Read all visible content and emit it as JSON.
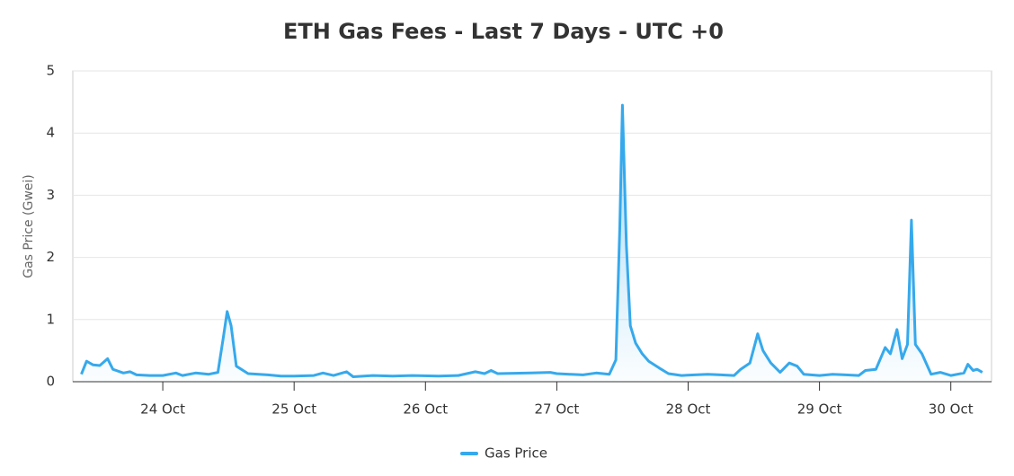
{
  "chart_data": {
    "type": "line",
    "title": "ETH Gas Fees - Last 7 Days - UTC +0",
    "y_label": "Gas Price (Gwei)",
    "x": [
      23.38,
      23.42,
      23.47,
      23.52,
      23.58,
      23.62,
      23.7,
      23.75,
      23.8,
      23.9,
      24.0,
      24.1,
      24.15,
      24.25,
      24.35,
      24.42,
      24.46,
      24.49,
      24.52,
      24.56,
      24.65,
      24.8,
      24.9,
      25.0,
      25.15,
      25.22,
      25.3,
      25.4,
      25.45,
      25.6,
      25.75,
      25.9,
      26.1,
      26.25,
      26.38,
      26.45,
      26.5,
      26.55,
      26.8,
      26.95,
      27.0,
      27.1,
      27.2,
      27.3,
      27.4,
      27.45,
      27.48,
      27.5,
      27.53,
      27.56,
      27.6,
      27.65,
      27.7,
      27.78,
      27.85,
      27.95,
      28.05,
      28.15,
      28.25,
      28.35,
      28.4,
      28.47,
      28.53,
      28.57,
      28.63,
      28.7,
      28.77,
      28.83,
      28.88,
      29.0,
      29.1,
      29.2,
      29.3,
      29.35,
      29.43,
      29.5,
      29.54,
      29.59,
      29.63,
      29.67,
      29.7,
      29.73,
      29.78,
      29.85,
      29.92,
      30.0,
      30.1,
      30.13,
      30.17,
      30.2,
      30.24
    ],
    "series": [
      {
        "name": "Gas Price",
        "color": "#36a9ec",
        "values": [
          0.12,
          0.33,
          0.27,
          0.26,
          0.37,
          0.2,
          0.14,
          0.16,
          0.11,
          0.1,
          0.1,
          0.14,
          0.1,
          0.14,
          0.12,
          0.15,
          0.7,
          1.13,
          0.9,
          0.25,
          0.13,
          0.11,
          0.09,
          0.09,
          0.1,
          0.14,
          0.1,
          0.16,
          0.08,
          0.1,
          0.09,
          0.1,
          0.09,
          0.1,
          0.16,
          0.13,
          0.18,
          0.13,
          0.14,
          0.15,
          0.13,
          0.12,
          0.11,
          0.14,
          0.12,
          0.35,
          2.5,
          4.45,
          2.2,
          0.9,
          0.62,
          0.45,
          0.33,
          0.22,
          0.13,
          0.1,
          0.11,
          0.12,
          0.11,
          0.1,
          0.2,
          0.3,
          0.77,
          0.5,
          0.3,
          0.15,
          0.3,
          0.25,
          0.12,
          0.1,
          0.12,
          0.11,
          0.1,
          0.18,
          0.2,
          0.55,
          0.45,
          0.84,
          0.37,
          0.6,
          2.6,
          0.6,
          0.45,
          0.12,
          0.15,
          0.1,
          0.14,
          0.28,
          0.18,
          0.2,
          0.15
        ]
      }
    ],
    "xlim": [
      23.315,
      30.31
    ],
    "xticks": [
      {
        "value": 24,
        "label": "24 Oct"
      },
      {
        "value": 25,
        "label": "25 Oct"
      },
      {
        "value": 26,
        "label": "26 Oct"
      },
      {
        "value": 27,
        "label": "27 Oct"
      },
      {
        "value": 28,
        "label": "28 Oct"
      },
      {
        "value": 29,
        "label": "29 Oct"
      },
      {
        "value": 30,
        "label": "30 Oct"
      }
    ],
    "ylim": [
      0,
      5
    ],
    "yticks": [
      0,
      1,
      2,
      3,
      4,
      5
    ],
    "grid": true
  }
}
